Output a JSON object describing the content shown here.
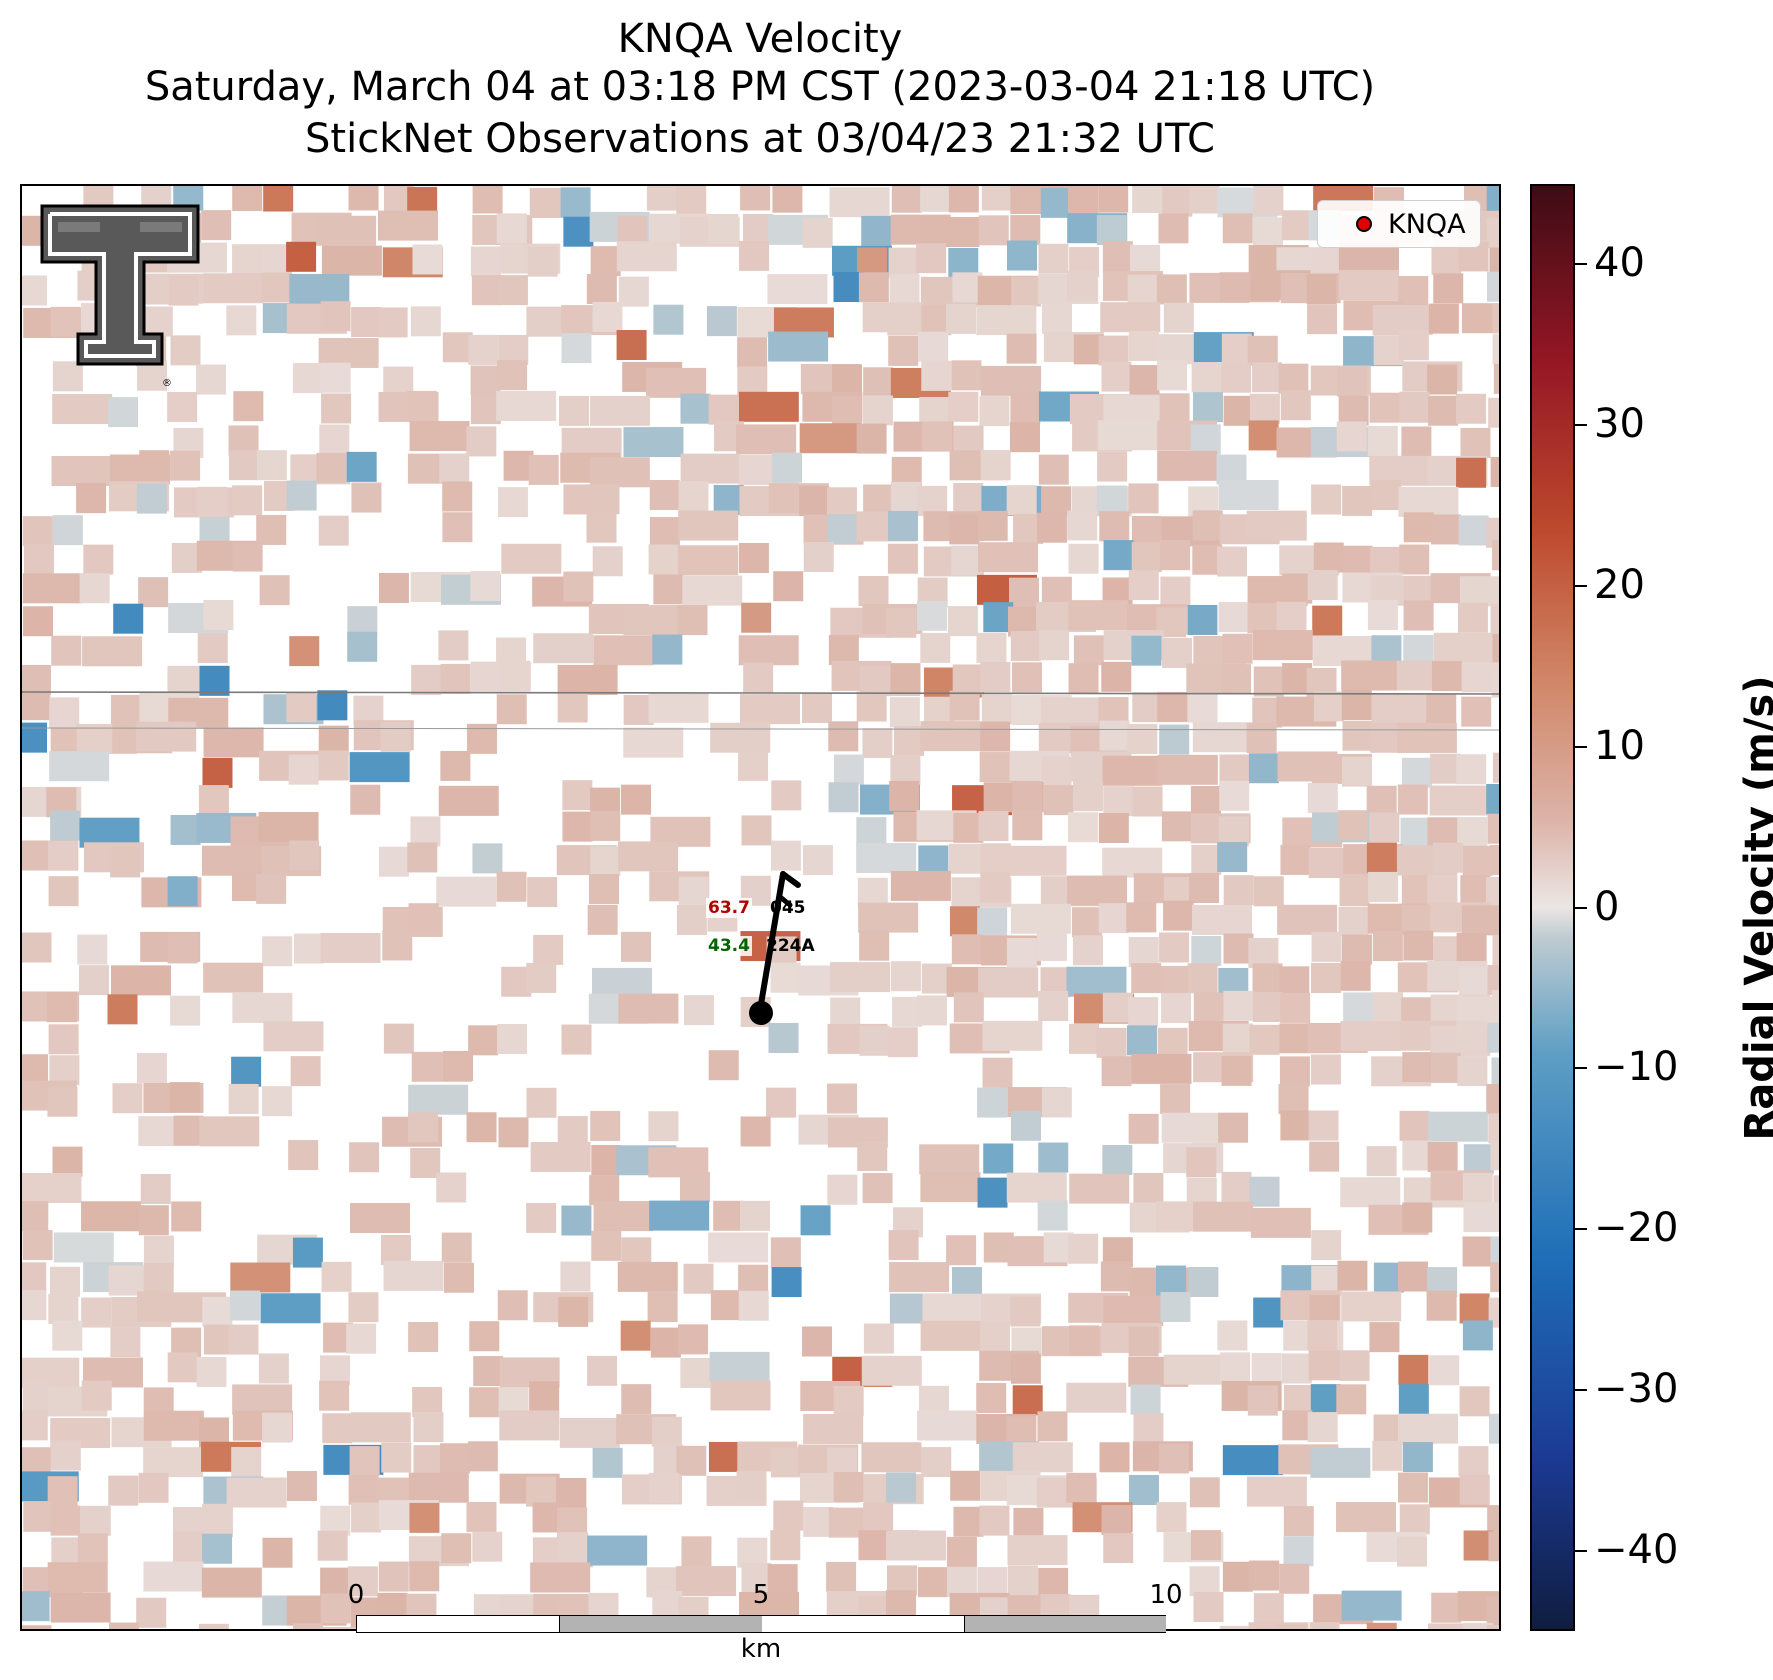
{
  "title": {
    "line1": "KNQA Velocity",
    "line2": "Saturday, March 04 at 03:18 PM CST (2023-03-04 21:18 UTC)",
    "line3": "StickNet Observations at 03/04/23 21:32 UTC"
  },
  "legend": {
    "entries": [
      {
        "label": "KNQA",
        "color": "#e00000"
      }
    ]
  },
  "colorbar": {
    "label": "Radial Velocity (m/s)",
    "range": [
      -45,
      45
    ],
    "ticks": [
      "40",
      "30",
      "20",
      "10",
      "0",
      "−10",
      "−20",
      "−30",
      "−40"
    ],
    "tick_values": [
      40,
      30,
      20,
      10,
      0,
      -10,
      -20,
      -30,
      -40
    ],
    "colormap": [
      "#0f1d3f",
      "#1c3a94",
      "#1f6fb8",
      "#5f9fc4",
      "#c0ccd2",
      "#ebe6e4",
      "#dcb4a8",
      "#d08566",
      "#be4a2e",
      "#941624",
      "#3e0c15"
    ]
  },
  "station": {
    "temperature": "63.7",
    "dewpoint": "43.4",
    "pressure_code": "045",
    "station_id": "224A",
    "temperature_color": "#b00000",
    "dewpoint_color": "#006400"
  },
  "scalebar": {
    "unit": "km",
    "tick_labels": [
      "0",
      "5",
      "10"
    ],
    "tick_values": [
      0,
      5,
      10
    ]
  },
  "logo": {
    "name": "texas-tech-double-t-logo"
  },
  "chart_data": {
    "type": "heatmap",
    "title": "KNQA Velocity",
    "subtitle": "Saturday, March 04 at 03:18 PM CST (2023-03-04 21:18 UTC) / StickNet Observations at 03/04/23 21:32 UTC",
    "value_label": "Radial Velocity (m/s)",
    "value_range": [
      -45,
      45
    ],
    "colorbar_ticks": [
      40,
      30,
      20,
      10,
      0,
      -10,
      -20,
      -30,
      -40
    ],
    "field_summary": "scattered radar velocity gates, mostly weak positive (0 to +10 m/s) with isolated stronger inbound and outbound gates",
    "legend": [
      "KNQA"
    ],
    "grid": false,
    "legend_position": "top-right",
    "station_plot": {
      "temperature": 63.7,
      "dewpoint": 43.4,
      "pressure": "045",
      "id": "224A"
    },
    "scalebar_km": [
      0,
      5,
      10
    ]
  }
}
